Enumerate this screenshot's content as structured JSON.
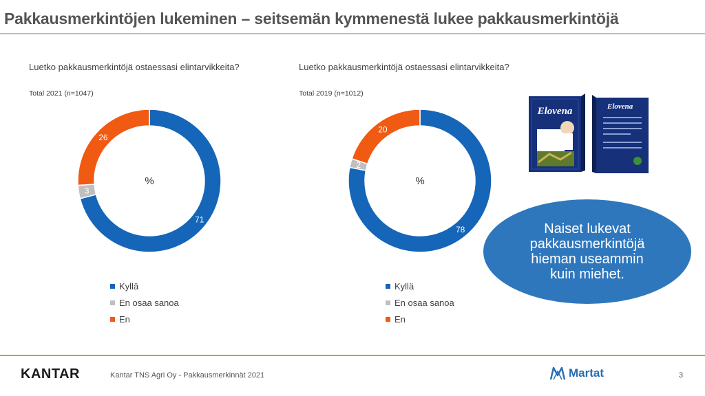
{
  "title": "Pakkausmerkintöjen lukeminen – seitsemän kymmenestä lukee pakkausmerkintöjä",
  "colors": {
    "kylla": "#1565b8",
    "eos": "#bfbfbf",
    "en": "#f05a12",
    "callout": "#2f77bd",
    "gold": "#c9a227"
  },
  "chart_data": [
    {
      "type": "pie",
      "title": "Luetko pakkausmerkintöjä ostaessasi elintarvikkeita?",
      "subtitle": "Total 2021 (n=1047)",
      "center_label": "%",
      "slices": [
        {
          "label": "Kyllä",
          "value": 71,
          "color": "#1565b8"
        },
        {
          "label": "En osaa sanoa",
          "value": 3,
          "color": "#bfbfbf"
        },
        {
          "label": "En",
          "value": 26,
          "color": "#f05a12"
        }
      ],
      "legend": [
        "Kyllä",
        "En osaa sanoa",
        "En"
      ]
    },
    {
      "type": "pie",
      "title": "Luetko pakkausmerkintöjä ostaessasi elintarvikkeita?",
      "subtitle": "Total 2019 (n=1012)",
      "center_label": "%",
      "slices": [
        {
          "label": "Kyllä",
          "value": 78,
          "color": "#1565b8"
        },
        {
          "label": "En osaa sanoa",
          "value": 2,
          "color": "#bfbfbf"
        },
        {
          "label": "En",
          "value": 20,
          "color": "#f05a12"
        }
      ],
      "legend": [
        "Kyllä",
        "En osaa sanoa",
        "En"
      ]
    }
  ],
  "product": {
    "brand": "Elovena"
  },
  "callout": "Naiset lukevat pakkausmerkintöjä hieman useammin kuin miehet.",
  "footer": {
    "logo": "KANTAR",
    "text": "Kantar TNS Agri Oy - Pakkausmerkinnät 2021",
    "partner": "Martat",
    "page": "3"
  }
}
